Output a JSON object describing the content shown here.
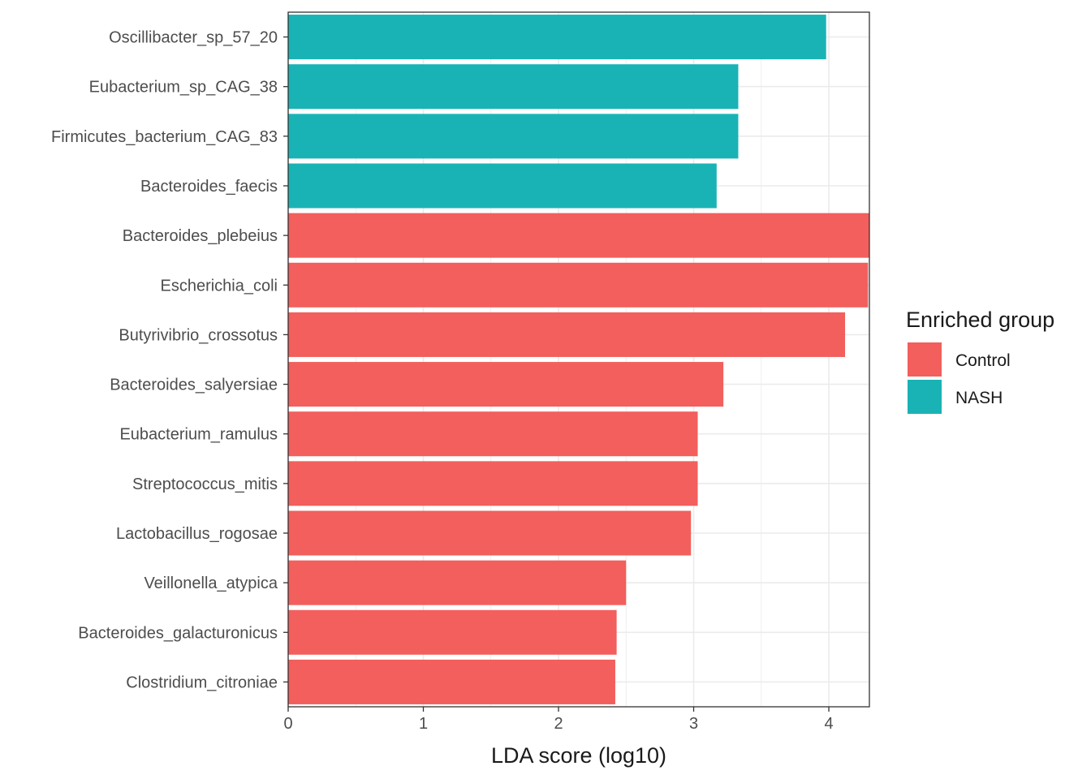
{
  "chart_data": {
    "type": "bar",
    "orientation": "horizontal",
    "title": "",
    "xlabel": "LDA score (log10)",
    "ylabel": "",
    "xlim": [
      0,
      4.3
    ],
    "xticks": [
      0,
      1,
      2,
      3,
      4
    ],
    "grid": true,
    "legend": {
      "title": "Enriched group",
      "placement": "right",
      "entries": [
        {
          "label": "Control",
          "color": "#F25F5C"
        },
        {
          "label": "NASH",
          "color": "#1AB3B5"
        }
      ]
    },
    "categories": [
      "Oscillibacter_sp_57_20",
      "Eubacterium_sp_CAG_38",
      "Firmicutes_bacterium_CAG_83",
      "Bacteroides_faecis",
      "Bacteroides_plebeius",
      "Escherichia_coli",
      "Butyrivibrio_crossotus",
      "Bacteroides_salyersiae",
      "Eubacterium_ramulus",
      "Streptococcus_mitis",
      "Lactobacillus_rogosae",
      "Veillonella_atypica",
      "Bacteroides_galacturonicus",
      "Clostridium_citroniae"
    ],
    "values": [
      3.98,
      3.33,
      3.33,
      3.17,
      4.31,
      4.29,
      4.12,
      3.22,
      3.03,
      3.03,
      2.98,
      2.5,
      2.43,
      2.42
    ],
    "groups": [
      "NASH",
      "NASH",
      "NASH",
      "NASH",
      "Control",
      "Control",
      "Control",
      "Control",
      "Control",
      "Control",
      "Control",
      "Control",
      "Control",
      "Control"
    ]
  }
}
